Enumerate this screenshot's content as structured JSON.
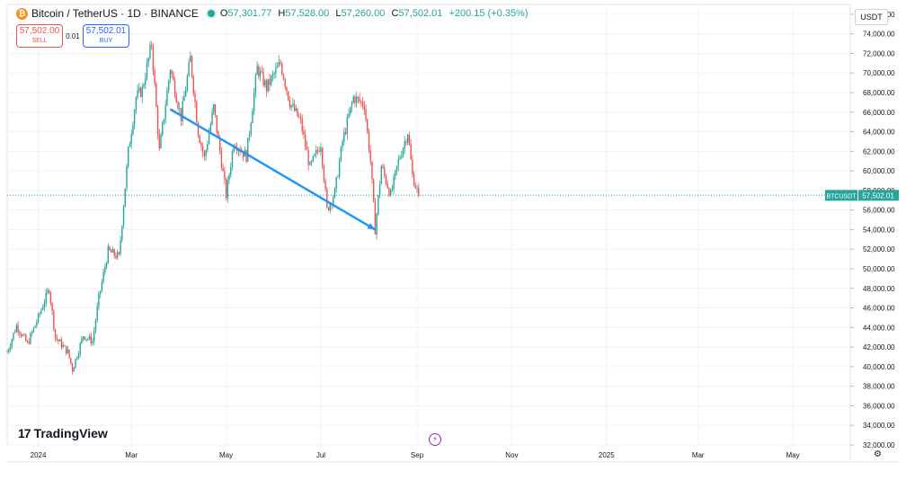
{
  "header": {
    "symbol": "Bitcoin / TetherUS · 1D · BINANCE",
    "ohlc": [
      {
        "k": "O",
        "v": "57,301.77"
      },
      {
        "k": "H",
        "v": "57,528.00"
      },
      {
        "k": "L",
        "v": "57,260.00"
      },
      {
        "k": "C",
        "v": "57,502.01"
      }
    ],
    "change": "+200.15 (+0.35%)",
    "currency": "USDT"
  },
  "trade": {
    "sell_price": "57,502.00",
    "sell_label": "SELL",
    "spread": "0.01",
    "buy_price": "57,502.01",
    "buy_label": "BUY"
  },
  "branding": {
    "logo_text": "TradingView"
  },
  "colors": {
    "up": "#26a69a",
    "down": "#ef5350",
    "trend_arrow": "#2196f3",
    "price_tag": "#26a69a"
  },
  "chart_data": {
    "type": "candlestick",
    "symbol": "BTCUSDT",
    "last_price": 57502.01,
    "last_price_label": "57,502.01",
    "ylim": [
      32000,
      77000
    ],
    "y_ticks": [
      "32,000.00",
      "34,000.00",
      "36,000.00",
      "38,000.00",
      "40,000.00",
      "42,000.00",
      "44,000.00",
      "46,000.00",
      "48,000.00",
      "50,000.00",
      "52,000.00",
      "54,000.00",
      "56,000.00",
      "58,000.00",
      "60,000.00",
      "62,000.00",
      "64,000.00",
      "66,000.00",
      "68,000.00",
      "70,000.00",
      "72,000.00",
      "74,000.00",
      "76,000.00"
    ],
    "x_ticks": [
      {
        "label": "2024",
        "date": "2024-01-01"
      },
      {
        "label": "Mar",
        "date": "2024-03-01"
      },
      {
        "label": "May",
        "date": "2024-05-01"
      },
      {
        "label": "Jul",
        "date": "2024-07-01"
      },
      {
        "label": "Sep",
        "date": "2024-09-01"
      },
      {
        "label": "Nov",
        "date": "2024-11-01"
      },
      {
        "label": "2025",
        "date": "2025-01-01"
      },
      {
        "label": "Mar",
        "date": "2025-03-01"
      },
      {
        "label": "May",
        "date": "2025-05-01"
      }
    ],
    "x_range": [
      "2023-12-12",
      "2025-06-07"
    ],
    "grid": true,
    "series": [
      {
        "date": "2023-12-12",
        "close": 41500
      },
      {
        "date": "2023-12-18",
        "close": 44200
      },
      {
        "date": "2023-12-25",
        "close": 42300
      },
      {
        "date": "2024-01-01",
        "close": 45000
      },
      {
        "date": "2024-01-08",
        "close": 48000
      },
      {
        "date": "2024-01-12",
        "close": 43000
      },
      {
        "date": "2024-01-20",
        "close": 41500
      },
      {
        "date": "2024-01-23",
        "close": 39700
      },
      {
        "date": "2024-01-30",
        "close": 43200
      },
      {
        "date": "2024-02-05",
        "close": 42600
      },
      {
        "date": "2024-02-09",
        "close": 47000
      },
      {
        "date": "2024-02-15",
        "close": 51800
      },
      {
        "date": "2024-02-22",
        "close": 51200
      },
      {
        "date": "2024-02-28",
        "close": 62000
      },
      {
        "date": "2024-03-04",
        "close": 67500
      },
      {
        "date": "2024-03-08",
        "close": 68300
      },
      {
        "date": "2024-03-14",
        "close": 73000
      },
      {
        "date": "2024-03-19",
        "close": 62000
      },
      {
        "date": "2024-03-26",
        "close": 70500
      },
      {
        "date": "2024-04-02",
        "close": 65500
      },
      {
        "date": "2024-04-08",
        "close": 71500
      },
      {
        "date": "2024-04-13",
        "close": 64000
      },
      {
        "date": "2024-04-17",
        "close": 61300
      },
      {
        "date": "2024-04-23",
        "close": 66500
      },
      {
        "date": "2024-05-01",
        "close": 57500
      },
      {
        "date": "2024-05-06",
        "close": 63000
      },
      {
        "date": "2024-05-14",
        "close": 61500
      },
      {
        "date": "2024-05-21",
        "close": 70500
      },
      {
        "date": "2024-05-27",
        "close": 68500
      },
      {
        "date": "2024-06-05",
        "close": 71000
      },
      {
        "date": "2024-06-11",
        "close": 67000
      },
      {
        "date": "2024-06-18",
        "close": 65000
      },
      {
        "date": "2024-06-24",
        "close": 60300
      },
      {
        "date": "2024-07-01",
        "close": 62800
      },
      {
        "date": "2024-07-05",
        "close": 56000
      },
      {
        "date": "2024-07-10",
        "close": 57800
      },
      {
        "date": "2024-07-15",
        "close": 63000
      },
      {
        "date": "2024-07-22",
        "close": 67500
      },
      {
        "date": "2024-07-29",
        "close": 66800
      },
      {
        "date": "2024-08-02",
        "close": 61000
      },
      {
        "date": "2024-08-05",
        "close": 54000
      },
      {
        "date": "2024-08-09",
        "close": 60500
      },
      {
        "date": "2024-08-15",
        "close": 57500
      },
      {
        "date": "2024-08-20",
        "close": 61000
      },
      {
        "date": "2024-08-26",
        "close": 64000
      },
      {
        "date": "2024-08-29",
        "close": 59500
      },
      {
        "date": "2024-09-02",
        "close": 57502
      }
    ],
    "annotations": [
      {
        "type": "arrow",
        "from": {
          "date": "2024-03-26",
          "price": 66300
        },
        "to": {
          "date": "2024-08-05",
          "price": 54000
        }
      }
    ]
  }
}
